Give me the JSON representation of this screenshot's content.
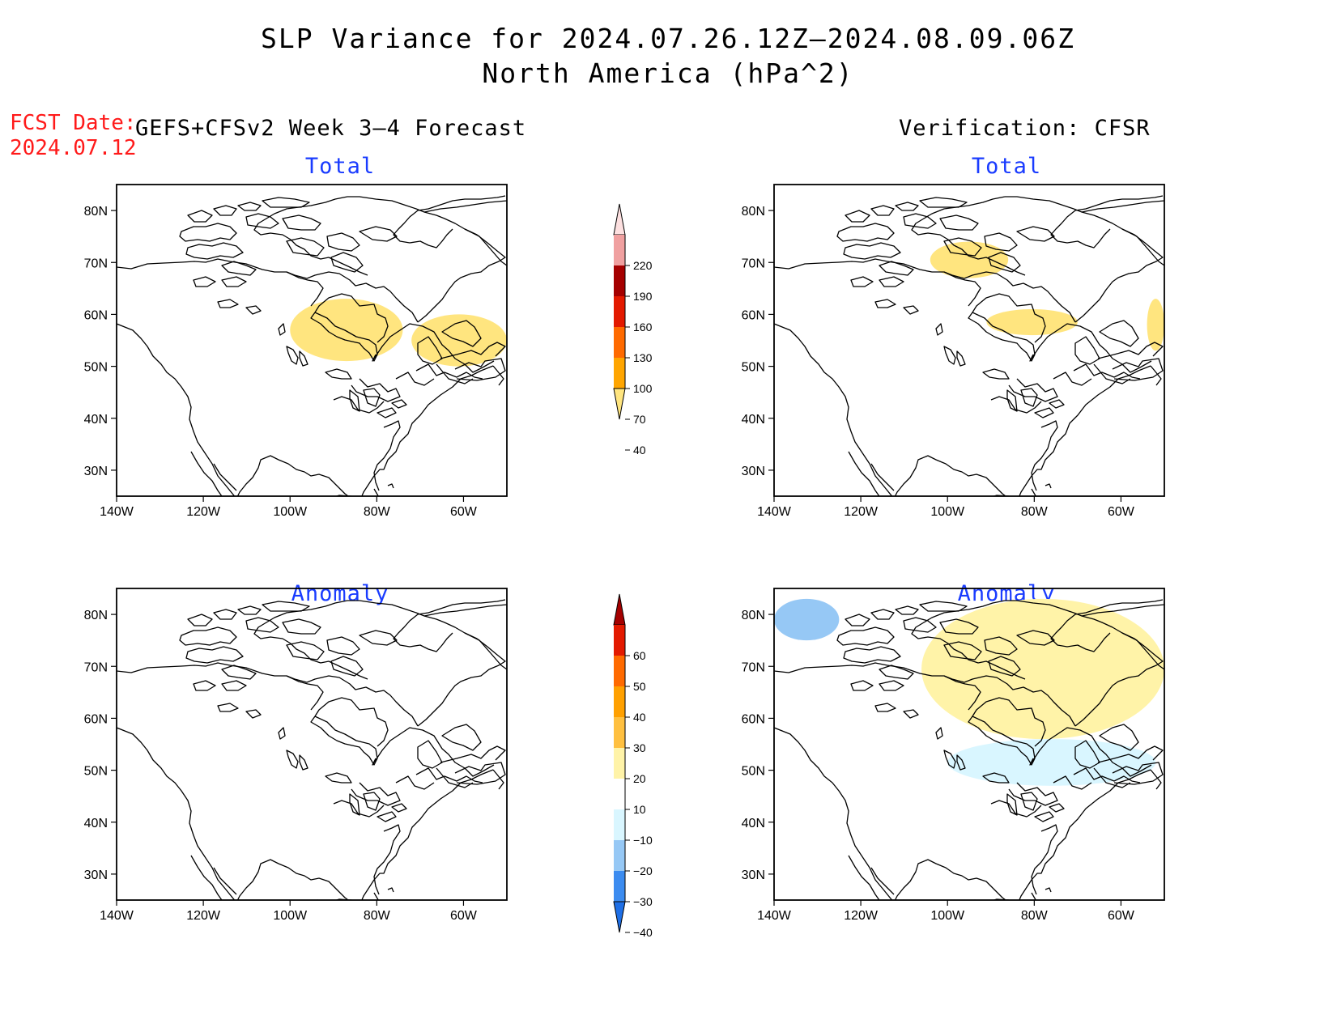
{
  "title": {
    "line1": "SLP Variance for 2024.07.26.12Z–2024.08.09.06Z",
    "line2": "North America (hPa^2)"
  },
  "fcst_date": {
    "label": "FCST Date:",
    "value": "2024.07.12"
  },
  "left_header": "GEFS+CFSv2 Week 3–4 Forecast",
  "right_header": "Verification: CFSR",
  "panel_titles": {
    "total": "Total",
    "anomaly": "Anomaly"
  },
  "map_axes": {
    "lat_labels": [
      "80N",
      "70N",
      "60N",
      "50N",
      "40N",
      "30N"
    ],
    "lon_labels": [
      "140W",
      "120W",
      "100W",
      "80W",
      "60W"
    ],
    "lat_range": [
      25,
      85
    ],
    "lon_range": [
      -140,
      -50
    ]
  },
  "colorbar_total": {
    "levels": [
      "40",
      "70",
      "100",
      "130",
      "160",
      "190",
      "220"
    ],
    "colors": [
      "#ffe57f",
      "#ffa500",
      "#ff6a00",
      "#e31a00",
      "#a50000",
      "#f0a0a0",
      "#fde0e0"
    ]
  },
  "colorbar_anomaly": {
    "levels": [
      "−40",
      "−30",
      "−20",
      "−10",
      "10",
      "20",
      "30",
      "40",
      "50",
      "60"
    ],
    "colors": [
      "#1e6fe6",
      "#3c8cf0",
      "#96c8f5",
      "#d9f6ff",
      "#ffffff",
      "#fff3a8",
      "#ffc040",
      "#ffa000",
      "#ff6a00",
      "#e31a00",
      "#a50000"
    ]
  },
  "chart_data": [
    {
      "type": "map",
      "panel": "GEFS+CFSv2 Week 3–4 Forecast – Total",
      "regions": [
        {
          "value_range": "40–70",
          "lat_range": [
            51,
            63
          ],
          "lon_range": [
            -100,
            -74
          ],
          "area": "Hudson Bay / Manitoba"
        },
        {
          "value_range": "40–70",
          "lat_range": [
            50,
            60
          ],
          "lon_range": [
            -72,
            -50
          ],
          "area": "Quebec / Labrador"
        }
      ]
    },
    {
      "type": "map",
      "panel": "Verification: CFSR – Total",
      "regions": [
        {
          "value_range": "40–70",
          "lat_range": [
            67,
            74
          ],
          "lon_range": [
            -104,
            -86
          ],
          "area": "Canadian Arctic"
        },
        {
          "value_range": "40–70",
          "lat_range": [
            56,
            61
          ],
          "lon_range": [
            -91,
            -70
          ],
          "area": "Hudson Bay"
        },
        {
          "value_range": "40–70",
          "lat_range": [
            53,
            63
          ],
          "lon_range": [
            -54,
            -50
          ],
          "area": "Labrador coast"
        }
      ]
    },
    {
      "type": "map",
      "panel": "GEFS+CFSv2 Week 3–4 Forecast – Anomaly",
      "regions": []
    },
    {
      "type": "map",
      "panel": "Verification: CFSR – Anomaly",
      "regions": [
        {
          "value_range": "20–30",
          "lat_range": [
            68,
            74
          ],
          "lon_range": [
            -103,
            -88
          ],
          "area": "Canadian Arctic"
        },
        {
          "value_range": "10–20",
          "lat_range": [
            56,
            83
          ],
          "lon_range": [
            -106,
            -50
          ],
          "area": "Arctic / Greenland / Hudson Bay"
        },
        {
          "value_range": "−20–−10",
          "lat_range": [
            75,
            83
          ],
          "lon_range": [
            -140,
            -125
          ],
          "area": "Beaufort Sea"
        },
        {
          "value_range": "−10–−10",
          "lat_range": [
            47,
            56
          ],
          "lon_range": [
            -100,
            -52
          ],
          "area": "Southern Canada"
        }
      ]
    }
  ]
}
